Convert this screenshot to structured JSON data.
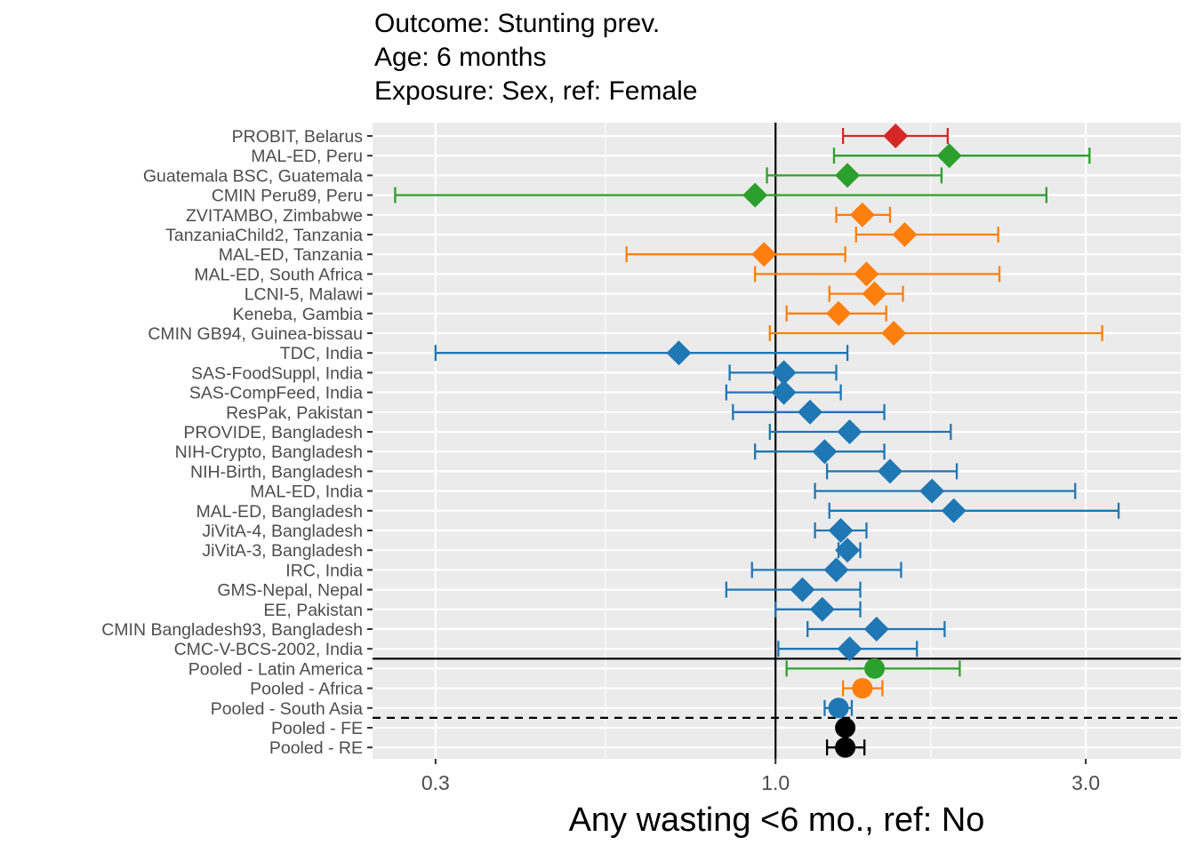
{
  "chart_data": {
    "type": "forest",
    "title_lines": [
      "Outcome: Stunting prev.",
      "Age: 6 months",
      "Exposure: Sex, ref: Female"
    ],
    "xlabel": "Any wasting  <6 mo., ref: No",
    "ylabel": "",
    "x_scale": "log",
    "xlim": [
      0.24,
      4.2
    ],
    "x_ticks": [
      {
        "value": 0.3,
        "label": "0.3"
      },
      {
        "value": 1.0,
        "label": "1.0"
      },
      {
        "value": 3.0,
        "label": "3.0"
      }
    ],
    "reference_line": 1.0,
    "grid": true,
    "legend": "none",
    "colors": {
      "Europe": "#d62728",
      "Latin America": "#2ca02c",
      "Africa": "#ff7f0e",
      "South Asia": "#1f77b4",
      "Overall": "#000000",
      "panel_bg": "#ebebeb",
      "grid": "#ffffff"
    },
    "rows": [
      {
        "label": "PROBIT, Belarus",
        "est": 1.53,
        "lo": 1.27,
        "hi": 1.84,
        "region": "Europe",
        "shape": "diamond"
      },
      {
        "label": "MAL-ED, Peru",
        "est": 1.85,
        "lo": 1.23,
        "hi": 3.04,
        "region": "Latin America",
        "shape": "diamond"
      },
      {
        "label": "Guatemala BSC, Guatemala",
        "est": 1.29,
        "lo": 0.97,
        "hi": 1.8,
        "region": "Latin America",
        "shape": "diamond"
      },
      {
        "label": "CMIN Peru89, Peru",
        "est": 0.93,
        "lo": 0.26,
        "hi": 2.61,
        "region": "Latin America",
        "shape": "diamond"
      },
      {
        "label": "ZVITAMBO, Zimbabwe",
        "est": 1.36,
        "lo": 1.24,
        "hi": 1.5,
        "region": "Africa",
        "shape": "diamond"
      },
      {
        "label": "TanzaniaChild2, Tanzania",
        "est": 1.58,
        "lo": 1.33,
        "hi": 2.2,
        "region": "Africa",
        "shape": "diamond"
      },
      {
        "label": "MAL-ED, Tanzania",
        "est": 0.96,
        "lo": 0.59,
        "hi": 1.28,
        "region": "Africa",
        "shape": "diamond"
      },
      {
        "label": "MAL-ED, South Africa",
        "est": 1.38,
        "lo": 0.93,
        "hi": 2.21,
        "region": "Africa",
        "shape": "diamond"
      },
      {
        "label": "LCNI-5, Malawi",
        "est": 1.42,
        "lo": 1.21,
        "hi": 1.57,
        "region": "Africa",
        "shape": "diamond"
      },
      {
        "label": "Keneba, Gambia",
        "est": 1.25,
        "lo": 1.04,
        "hi": 1.48,
        "region": "Africa",
        "shape": "diamond"
      },
      {
        "label": "CMIN GB94, Guinea-bissau",
        "est": 1.52,
        "lo": 0.98,
        "hi": 3.18,
        "region": "Africa",
        "shape": "diamond"
      },
      {
        "label": "TDC, India",
        "est": 0.71,
        "lo": 0.3,
        "hi": 1.29,
        "region": "South Asia",
        "shape": "diamond"
      },
      {
        "label": "SAS-FoodSuppl, India",
        "est": 1.03,
        "lo": 0.85,
        "hi": 1.24,
        "region": "South Asia",
        "shape": "diamond"
      },
      {
        "label": "SAS-CompFeed, India",
        "est": 1.03,
        "lo": 0.84,
        "hi": 1.26,
        "region": "South Asia",
        "shape": "diamond"
      },
      {
        "label": "ResPak, Pakistan",
        "est": 1.13,
        "lo": 0.86,
        "hi": 1.47,
        "region": "South Asia",
        "shape": "diamond"
      },
      {
        "label": "PROVIDE, Bangladesh",
        "est": 1.3,
        "lo": 0.98,
        "hi": 1.86,
        "region": "South Asia",
        "shape": "diamond"
      },
      {
        "label": "NIH-Crypto, Bangladesh",
        "est": 1.19,
        "lo": 0.93,
        "hi": 1.47,
        "region": "South Asia",
        "shape": "diamond"
      },
      {
        "label": "NIH-Birth, Bangladesh",
        "est": 1.5,
        "lo": 1.2,
        "hi": 1.9,
        "region": "South Asia",
        "shape": "diamond"
      },
      {
        "label": "MAL-ED, India",
        "est": 1.74,
        "lo": 1.15,
        "hi": 2.89,
        "region": "South Asia",
        "shape": "diamond"
      },
      {
        "label": "MAL-ED, Bangladesh",
        "est": 1.88,
        "lo": 1.21,
        "hi": 3.37,
        "region": "South Asia",
        "shape": "diamond"
      },
      {
        "label": "JiVitA-4, Bangladesh",
        "est": 1.26,
        "lo": 1.15,
        "hi": 1.38,
        "region": "South Asia",
        "shape": "diamond"
      },
      {
        "label": "JiVitA-3, Bangladesh",
        "est": 1.29,
        "lo": 1.25,
        "hi": 1.35,
        "region": "South Asia",
        "shape": "diamond"
      },
      {
        "label": "IRC, India",
        "est": 1.24,
        "lo": 0.92,
        "hi": 1.56,
        "region": "South Asia",
        "shape": "diamond"
      },
      {
        "label": "GMS-Nepal, Nepal",
        "est": 1.1,
        "lo": 0.84,
        "hi": 1.35,
        "region": "South Asia",
        "shape": "diamond"
      },
      {
        "label": "EE, Pakistan",
        "est": 1.18,
        "lo": 1.0,
        "hi": 1.35,
        "region": "South Asia",
        "shape": "diamond"
      },
      {
        "label": "CMIN Bangladesh93, Bangladesh",
        "est": 1.43,
        "lo": 1.12,
        "hi": 1.82,
        "region": "South Asia",
        "shape": "diamond"
      },
      {
        "label": "CMC-V-BCS-2002, India",
        "est": 1.3,
        "lo": 1.01,
        "hi": 1.65,
        "region": "South Asia",
        "shape": "diamond"
      },
      {
        "label": "Pooled - Latin America",
        "est": 1.42,
        "lo": 1.04,
        "hi": 1.92,
        "region": "Latin America",
        "shape": "circle"
      },
      {
        "label": "Pooled - Africa",
        "est": 1.36,
        "lo": 1.27,
        "hi": 1.46,
        "region": "Africa",
        "shape": "circle"
      },
      {
        "label": "Pooled - South Asia",
        "est": 1.25,
        "lo": 1.19,
        "hi": 1.31,
        "region": "South Asia",
        "shape": "circle"
      },
      {
        "label": "Pooled - FE",
        "est": 1.28,
        "lo": 1.26,
        "hi": 1.3,
        "region": "Overall",
        "shape": "circle"
      },
      {
        "label": "Pooled - RE",
        "est": 1.28,
        "lo": 1.2,
        "hi": 1.37,
        "region": "Overall",
        "shape": "circle"
      }
    ],
    "separators": [
      {
        "after_row": "CMC-V-BCS-2002, India",
        "style": "solid"
      },
      {
        "after_row": "Pooled - South Asia",
        "style": "dashed"
      }
    ]
  }
}
